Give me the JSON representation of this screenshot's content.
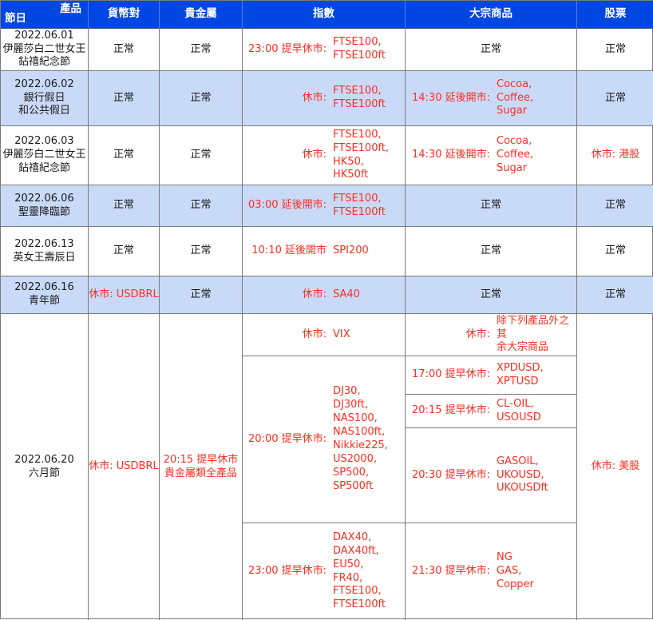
{
  "colors": {
    "header_bg": "#0047e2",
    "alt_row_bg": "#c9daf8",
    "schedule_red": "#ff2d21",
    "border": "#7a7a7a",
    "header_text": "#ffffff",
    "body_text": "#1a1a1a"
  },
  "header": {
    "corner_product": "產品",
    "corner_holiday": "節日",
    "currency_pairs": "貨幣對",
    "precious_metals": "貴金屬",
    "indices": "指數",
    "commodities": "大宗商品",
    "stocks": "股票"
  },
  "rows": [
    {
      "date": "2022.06.01\n伊麗莎白二世女王\n鉆禧紀念節",
      "fx": "正常",
      "metals": "正常",
      "indices_label": "23:00 提早休市:",
      "indices_products": "FTSE100,\nFTSE100ft",
      "commodities": "正常",
      "stocks": "正常"
    },
    {
      "date": "2022.06.02\n銀行假日\n和公共假日",
      "fx": "正常",
      "metals": "正常",
      "indices_label": "休市:",
      "indices_products": "FTSE100,\nFTSE100ft",
      "commodities_label": "14:30 延後開市:",
      "commodities_products": "Cocoa,\nCoffee,\nSugar",
      "stocks": "正常"
    },
    {
      "date": "2022.06.03\n伊麗莎白二世女王\n鉆禧紀念節",
      "fx": "正常",
      "metals": "正常",
      "indices_label": "休市:",
      "indices_products": "FTSE100,\nFTSE100ft,\nHK50,\nHK50ft",
      "commodities_label": "14:30 延後開市:",
      "commodities_products": "Cocoa,\nCoffee,\nSugar",
      "stocks": "休市: 港股"
    },
    {
      "date": "2022.06.06\n聖靈降臨節",
      "fx": "正常",
      "metals": "正常",
      "indices_label": "03:00 延後開市:",
      "indices_products": "FTSE100,\nFTSE100ft",
      "commodities": "正常",
      "stocks": "正常"
    },
    {
      "date": "2022.06.13\n英女王壽辰日",
      "fx": "正常",
      "metals": "正常",
      "indices_label": "10:10 延後開市",
      "indices_products": "SPI200",
      "commodities": "正常",
      "stocks": "正常"
    },
    {
      "date": "2022.06.16\n青年節",
      "fx": "休市: USDBRL",
      "metals": "正常",
      "indices_label": "休市:",
      "indices_products": "SA40",
      "commodities": "正常",
      "stocks": "正常"
    },
    {
      "date": "2022.06.20\n六月節",
      "fx": "休市: USDBRL",
      "metals": "20:15 提早休市\n貴金屬類全產品",
      "indices_sub": [
        {
          "label": "休市:",
          "products": "VIX"
        },
        {
          "label": "20:00 提早休市:",
          "products": "DJ30,\nDJ30ft,\nNAS100,\nNAS100ft,\nNikkie225,\nUS2000,\nSP500,\nSP500ft"
        },
        {
          "label": "23:00 提早休市:",
          "products": "DAX40,\nDAX40ft,\nEU50,\nFR40,\nFTSE100,\nFTSE100ft"
        }
      ],
      "commodities_sub": [
        {
          "label": "休市:",
          "products": "除下列產品外之其\n余大宗商品"
        },
        {
          "label": "17:00 提早休市:",
          "products": "XPDUSD,\nXPTUSD"
        },
        {
          "label": "20:15 提早休市:",
          "products": "CL-OIL,\nUSOUSD"
        },
        {
          "label": "20:30 提早休市:",
          "products": "GASOIL,\nUKOUSD,\nUKOUSDft"
        },
        {
          "label": "21:30 提早休市:",
          "products": "NG\nGAS,\nCopper"
        }
      ],
      "stocks": "休市: 美股"
    }
  ]
}
